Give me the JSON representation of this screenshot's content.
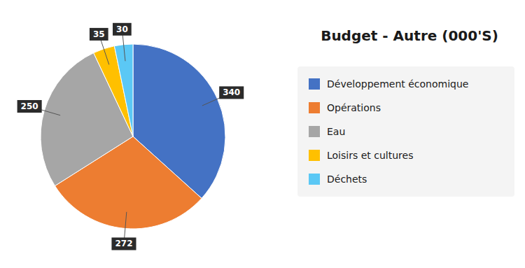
{
  "chart_data": {
    "type": "pie",
    "title": "Budget - Autre (000'S)",
    "categories": [
      "Développement économique",
      "Opérations",
      "Eau",
      "Loisirs et cultures",
      "Déchets"
    ],
    "values": [
      340,
      272,
      250,
      35,
      30
    ],
    "colors": [
      "#4472C4",
      "#ED7D31",
      "#A6A6A6",
      "#FFC000",
      "#5BC8F5"
    ],
    "data_labels": true,
    "legend": "right"
  }
}
